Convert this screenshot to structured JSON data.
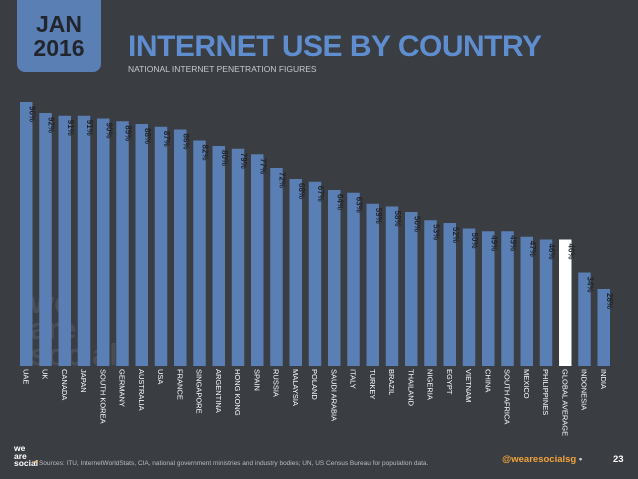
{
  "header": {
    "month": "JAN",
    "year": "2016",
    "title": "INTERNET USE BY COUNTRY",
    "subtitle": "NATIONAL INTERNET PENETRATION FIGURES"
  },
  "watermark": [
    "we",
    "are",
    "social"
  ],
  "colors": {
    "background": "#3a3d42",
    "bar": "#5a7fb5",
    "highlight_bar": "#ffffff",
    "accent": "#f2a33a"
  },
  "chart_data": {
    "type": "bar",
    "categories": [
      "UAE",
      "UK",
      "CANADA",
      "JAPAN",
      "SOUTH KOREA",
      "GERMANY",
      "AUSTRALIA",
      "USA",
      "FRANCE",
      "SINGAPORE",
      "ARGENTINA",
      "HONG KONG",
      "SPAIN",
      "RUSSIA",
      "MALAYSIA",
      "POLAND",
      "SAUDI ARABIA",
      "ITALY",
      "TURKEY",
      "BRAZIL",
      "THAILAND",
      "NIGERIA",
      "EGYPT",
      "VIETNAM",
      "CHINA",
      "SOUTH AFRICA",
      "MEXICO",
      "PHILIPPINES",
      "GLOBAL AVERAGE",
      "INDONESIA",
      "INDIA"
    ],
    "values": [
      96,
      92,
      91,
      91,
      90,
      89,
      88,
      87,
      86,
      82,
      80,
      79,
      77,
      72,
      68,
      67,
      64,
      63,
      59,
      58,
      56,
      53,
      52,
      50,
      49,
      49,
      47,
      46,
      46,
      34,
      28
    ],
    "value_labels": [
      "96%",
      "92%",
      "91%",
      "91%",
      "90%",
      "89%",
      "88%",
      "87%",
      "86%",
      "82%",
      "80%",
      "79%",
      "77%",
      "72%",
      "68%",
      "67%",
      "64%",
      "63%",
      "59%",
      "58%",
      "56%",
      "53%",
      "52%",
      "50%",
      "49%",
      "49%",
      "47%",
      "46%",
      "46%",
      "34%",
      "28%"
    ],
    "highlight_category": "GLOBAL AVERAGE",
    "ylim": [
      0,
      100
    ],
    "grid": false
  },
  "footer": {
    "logo": [
      "we",
      "are",
      "social"
    ],
    "sources": "Sources: ITU, InternetWorldStats, CIA, national government ministries and industry bodies; UN, US Census Bureau for population data.",
    "handle": "@wearesocialsg",
    "page": "23"
  }
}
